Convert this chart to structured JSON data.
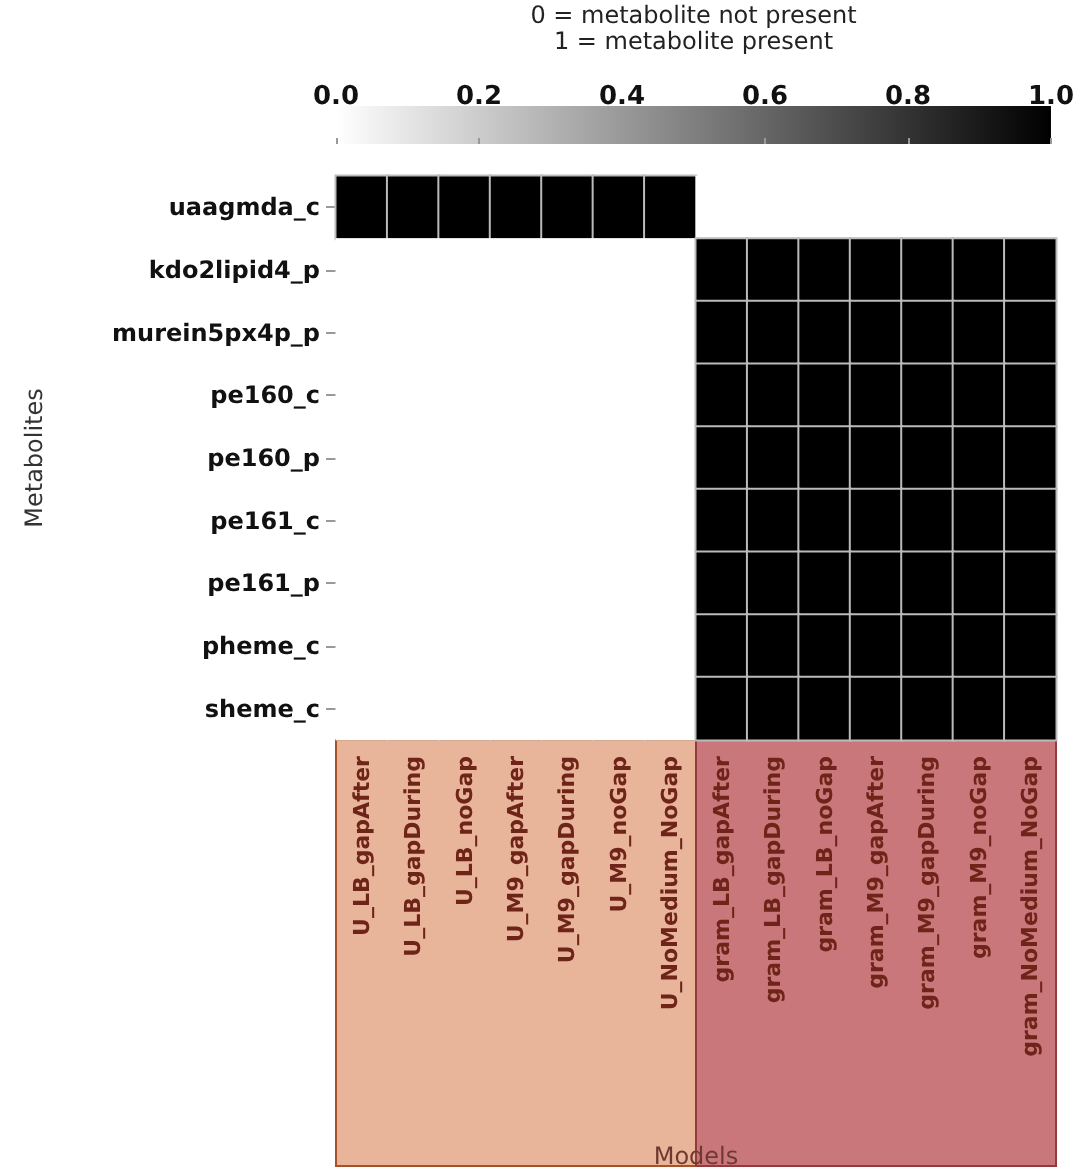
{
  "chart_data": {
    "type": "heatmap",
    "clabel": "0 = metabolite not present\n1 = metabolite present",
    "xlabel": "Models",
    "ylabel": "Metabolites",
    "categories": [
      "U_LB_gapAfter",
      "U_LB_gapDuring",
      "U_LB_noGap",
      "U_M9_gapAfter",
      "U_M9_gapDuring",
      "U_M9_noGap",
      "U_NoMedium_NoGap",
      "gram_LB_gapAfter",
      "gram_LB_gapDuring",
      "gram_LB_noGap",
      "gram_M9_gapAfter",
      "gram_M9_gapDuring",
      "gram_M9_noGap",
      "gram_NoMedium_NoGap"
    ],
    "y_categories": [
      "uaagmda_c",
      "kdo2lipid4_p",
      "murein5px4p_p",
      "pe160_c",
      "pe160_p",
      "pe161_c",
      "pe161_p",
      "pheme_c",
      "sheme_c"
    ],
    "cells": [
      [
        1,
        1,
        1,
        1,
        1,
        1,
        1,
        0,
        0,
        0,
        0,
        0,
        0,
        0
      ],
      [
        0,
        0,
        0,
        0,
        0,
        0,
        0,
        1,
        1,
        1,
        1,
        1,
        1,
        1
      ],
      [
        0,
        0,
        0,
        0,
        0,
        0,
        0,
        1,
        1,
        1,
        1,
        1,
        1,
        1
      ],
      [
        0,
        0,
        0,
        0,
        0,
        0,
        0,
        1,
        1,
        1,
        1,
        1,
        1,
        1
      ],
      [
        0,
        0,
        0,
        0,
        0,
        0,
        0,
        1,
        1,
        1,
        1,
        1,
        1,
        1
      ],
      [
        0,
        0,
        0,
        0,
        0,
        0,
        0,
        1,
        1,
        1,
        1,
        1,
        1,
        1
      ],
      [
        0,
        0,
        0,
        0,
        0,
        0,
        0,
        1,
        1,
        1,
        1,
        1,
        1,
        1
      ],
      [
        0,
        0,
        0,
        0,
        0,
        0,
        0,
        1,
        1,
        1,
        1,
        1,
        1,
        1
      ],
      [
        0,
        0,
        0,
        0,
        0,
        0,
        0,
        1,
        1,
        1,
        1,
        1,
        1,
        1
      ]
    ],
    "clim": [
      0,
      1
    ],
    "cticks": [
      {
        "value": 0,
        "label": "0.0"
      },
      {
        "value": 0.2,
        "label": "0.2"
      },
      {
        "value": 0.4,
        "label": "0.4"
      },
      {
        "value": 0.6,
        "label": "0.6"
      },
      {
        "value": 0.8,
        "label": "0.8"
      },
      {
        "value": 1,
        "label": "1.0"
      }
    ],
    "bands": [
      {
        "axis": "x",
        "from": "U_LB_gapAfter",
        "to": "U_NoMedium_NoGap",
        "color": "#e8b49a"
      },
      {
        "axis": "x",
        "from": "gram_LB_gapAfter",
        "to": "gram_NoMedium_NoGap",
        "color": "#c9777b"
      }
    ]
  }
}
